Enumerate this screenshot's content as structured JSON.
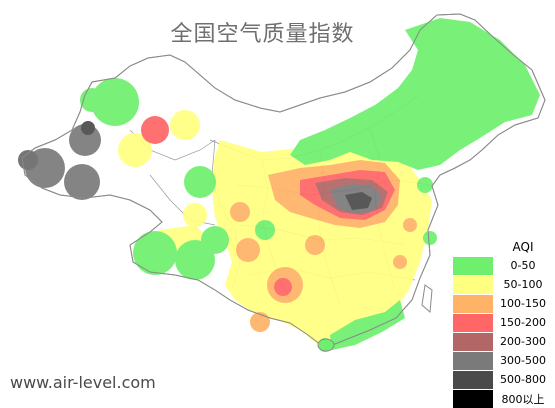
{
  "title": "全国空气质量指数",
  "watermark": "www.air-level.com",
  "legend": {
    "title": "AQI",
    "items": [
      {
        "label": "0-50",
        "color": "#6ef06e"
      },
      {
        "label": "50-100",
        "color": "#ffff80"
      },
      {
        "label": "100-150",
        "color": "#ffb366"
      },
      {
        "label": "150-200",
        "color": "#ff6666"
      },
      {
        "label": "200-300",
        "color": "#b36666"
      },
      {
        "label": "300-500",
        "color": "#7a7a7a"
      },
      {
        "label": "500-800",
        "color": "#4a4a4a"
      },
      {
        "label": "800以上",
        "color": "#000000"
      }
    ]
  },
  "colors": {
    "background": "#ffffff",
    "border": "#8a8a8a"
  }
}
